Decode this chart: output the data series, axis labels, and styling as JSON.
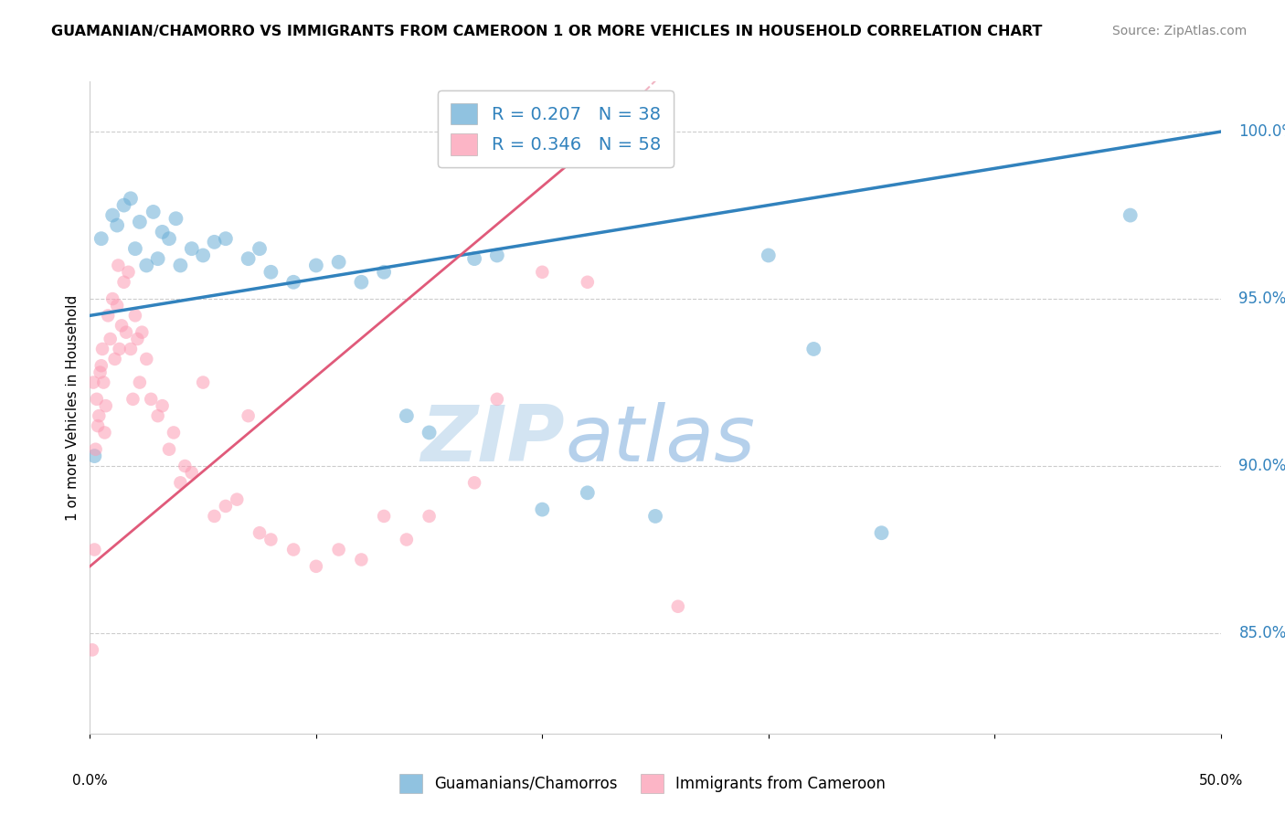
{
  "title": "GUAMANIAN/CHAMORRO VS IMMIGRANTS FROM CAMEROON 1 OR MORE VEHICLES IN HOUSEHOLD CORRELATION CHART",
  "source": "Source: ZipAtlas.com",
  "ylabel": "1 or more Vehicles in Household",
  "yaxis_labels": [
    85.0,
    90.0,
    95.0,
    100.0
  ],
  "xmin": 0.0,
  "xmax": 50.0,
  "ymin": 82.0,
  "ymax": 101.5,
  "blue_R": "0.207",
  "blue_N": "38",
  "pink_R": "0.346",
  "pink_N": "58",
  "blue_color": "#6baed6",
  "pink_color": "#fc9cb4",
  "blue_line_color": "#3182bd",
  "pink_line_color": "#e05a7a",
  "watermark_zip": "ZIP",
  "watermark_atlas": "atlas",
  "blue_scatter": [
    [
      0.5,
      96.8
    ],
    [
      1.0,
      97.5
    ],
    [
      1.2,
      97.2
    ],
    [
      1.5,
      97.8
    ],
    [
      1.8,
      98.0
    ],
    [
      2.0,
      96.5
    ],
    [
      2.2,
      97.3
    ],
    [
      2.5,
      96.0
    ],
    [
      2.8,
      97.6
    ],
    [
      3.0,
      96.2
    ],
    [
      3.2,
      97.0
    ],
    [
      3.5,
      96.8
    ],
    [
      3.8,
      97.4
    ],
    [
      4.0,
      96.0
    ],
    [
      4.5,
      96.5
    ],
    [
      5.0,
      96.3
    ],
    [
      5.5,
      96.7
    ],
    [
      6.0,
      96.8
    ],
    [
      7.0,
      96.2
    ],
    [
      7.5,
      96.5
    ],
    [
      8.0,
      95.8
    ],
    [
      9.0,
      95.5
    ],
    [
      10.0,
      96.0
    ],
    [
      11.0,
      96.1
    ],
    [
      12.0,
      95.5
    ],
    [
      13.0,
      95.8
    ],
    [
      14.0,
      91.5
    ],
    [
      15.0,
      91.0
    ],
    [
      17.0,
      96.2
    ],
    [
      18.0,
      96.3
    ],
    [
      20.0,
      88.7
    ],
    [
      22.0,
      89.2
    ],
    [
      25.0,
      88.5
    ],
    [
      30.0,
      96.3
    ],
    [
      32.0,
      93.5
    ],
    [
      35.0,
      88.0
    ],
    [
      46.0,
      97.5
    ],
    [
      0.2,
      90.3
    ]
  ],
  "pink_scatter": [
    [
      0.1,
      84.5
    ],
    [
      0.2,
      87.5
    ],
    [
      0.3,
      92.0
    ],
    [
      0.4,
      91.5
    ],
    [
      0.5,
      93.0
    ],
    [
      0.6,
      92.5
    ],
    [
      0.7,
      91.8
    ],
    [
      0.8,
      94.5
    ],
    [
      0.9,
      93.8
    ],
    [
      1.0,
      95.0
    ],
    [
      1.1,
      93.2
    ],
    [
      1.2,
      94.8
    ],
    [
      1.3,
      93.5
    ],
    [
      1.4,
      94.2
    ],
    [
      1.5,
      95.5
    ],
    [
      1.6,
      94.0
    ],
    [
      1.7,
      95.8
    ],
    [
      1.8,
      93.5
    ],
    [
      1.9,
      92.0
    ],
    [
      2.0,
      94.5
    ],
    [
      2.1,
      93.8
    ],
    [
      2.2,
      92.5
    ],
    [
      2.3,
      94.0
    ],
    [
      2.5,
      93.2
    ],
    [
      2.7,
      92.0
    ],
    [
      3.0,
      91.5
    ],
    [
      3.2,
      91.8
    ],
    [
      3.5,
      90.5
    ],
    [
      3.7,
      91.0
    ],
    [
      4.0,
      89.5
    ],
    [
      4.2,
      90.0
    ],
    [
      4.5,
      89.8
    ],
    [
      5.0,
      92.5
    ],
    [
      5.5,
      88.5
    ],
    [
      6.0,
      88.8
    ],
    [
      6.5,
      89.0
    ],
    [
      7.0,
      91.5
    ],
    [
      7.5,
      88.0
    ],
    [
      8.0,
      87.8
    ],
    [
      9.0,
      87.5
    ],
    [
      10.0,
      87.0
    ],
    [
      11.0,
      87.5
    ],
    [
      12.0,
      87.2
    ],
    [
      13.0,
      88.5
    ],
    [
      14.0,
      87.8
    ],
    [
      15.0,
      88.5
    ],
    [
      17.0,
      89.5
    ],
    [
      18.0,
      92.0
    ],
    [
      20.0,
      95.8
    ],
    [
      22.0,
      95.5
    ],
    [
      0.15,
      92.5
    ],
    [
      0.25,
      90.5
    ],
    [
      0.35,
      91.2
    ],
    [
      0.45,
      92.8
    ],
    [
      0.55,
      93.5
    ],
    [
      0.65,
      91.0
    ],
    [
      1.25,
      96.0
    ],
    [
      26.0,
      85.8
    ]
  ],
  "blue_trendline": [
    [
      0.0,
      94.5
    ],
    [
      50.0,
      100.0
    ]
  ],
  "pink_trendline_solid": [
    [
      0.0,
      87.0
    ],
    [
      22.0,
      99.5
    ]
  ],
  "pink_trendline_dash": [
    [
      22.0,
      99.5
    ],
    [
      45.0,
      115.0
    ]
  ]
}
